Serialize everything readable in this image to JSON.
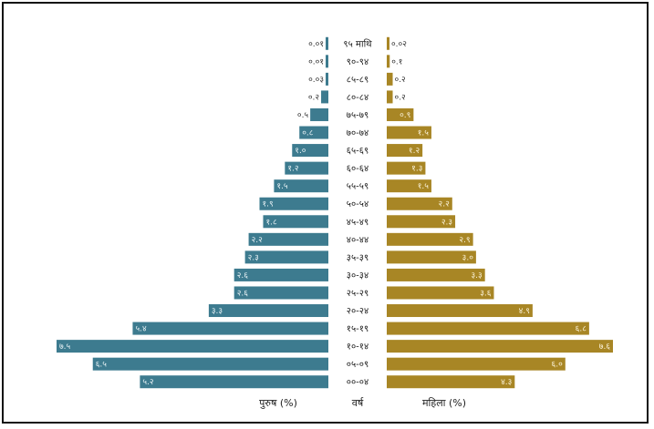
{
  "chart_data": {
    "type": "bar",
    "orientation": "horizontal-pyramid",
    "xlabel_left": "पुरुष (%)",
    "xlabel_center": "वर्ष",
    "xlabel_right": "महिला (%)",
    "categories": [
      "९५ माथि",
      "९०-९४",
      "८५-८९",
      "८०-८४",
      "७५-७९",
      "७०-७४",
      "६५-६९",
      "६०-६४",
      "५५-५९",
      "५०-५४",
      "४५-४९",
      "४०-४४",
      "३५-३९",
      "३०-३४",
      "२५-२९",
      "२०-२४",
      "१५-१९",
      "१०-१४",
      "०५-०९",
      "००-०४"
    ],
    "series": [
      {
        "name": "पुरुष (%)",
        "side": "left",
        "color": "#3d7b8f",
        "values": [
          0.01,
          0.01,
          0.03,
          0.2,
          0.5,
          0.8,
          1.0,
          1.2,
          1.5,
          1.9,
          1.8,
          2.2,
          2.3,
          2.6,
          2.6,
          3.3,
          5.4,
          7.5,
          6.5,
          5.2
        ],
        "labels": [
          "०.०१",
          "०.०१",
          "०.०३",
          "०.२",
          "०.५",
          "०.८",
          "१.०",
          "१.२",
          "१.५",
          "१.९",
          "१.८",
          "२.२",
          "२.३",
          "२.६",
          "२.६",
          "३.३",
          "५.४",
          "७.५",
          "६.५",
          "५.२"
        ]
      },
      {
        "name": "महिला (%)",
        "side": "right",
        "color": "#a88625",
        "values": [
          0.02,
          0.1,
          0.2,
          0.2,
          0.9,
          1.5,
          1.2,
          1.3,
          1.5,
          2.2,
          2.3,
          2.9,
          3.0,
          3.3,
          3.6,
          4.9,
          6.8,
          7.6,
          6.0,
          4.3
        ],
        "labels": [
          "०.०२",
          "०.१",
          "०.२",
          "०.२",
          "०.९",
          "१.५",
          "१.२",
          "१.३",
          "१.५",
          "२.२",
          "२.३",
          "२.९",
          "३.०",
          "३.३",
          "३.६",
          "४.९",
          "६.८",
          "७.६",
          "६.०",
          "४.३"
        ]
      }
    ],
    "grid": false,
    "legend": "none"
  }
}
